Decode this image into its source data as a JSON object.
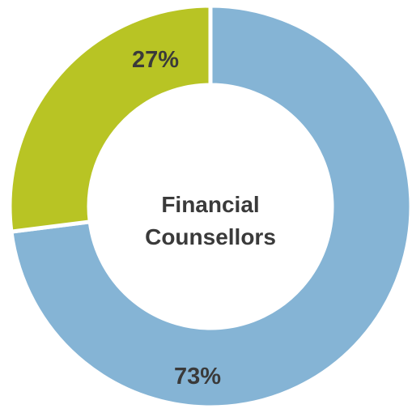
{
  "chart_data": {
    "type": "pie",
    "donut": true,
    "center_label": [
      "Financial",
      "Counsellors"
    ],
    "slices": [
      {
        "value": 73,
        "label": "73%",
        "color": "#85b4d5"
      },
      {
        "value": 27,
        "label": "27%",
        "color": "#b8c424"
      }
    ]
  }
}
